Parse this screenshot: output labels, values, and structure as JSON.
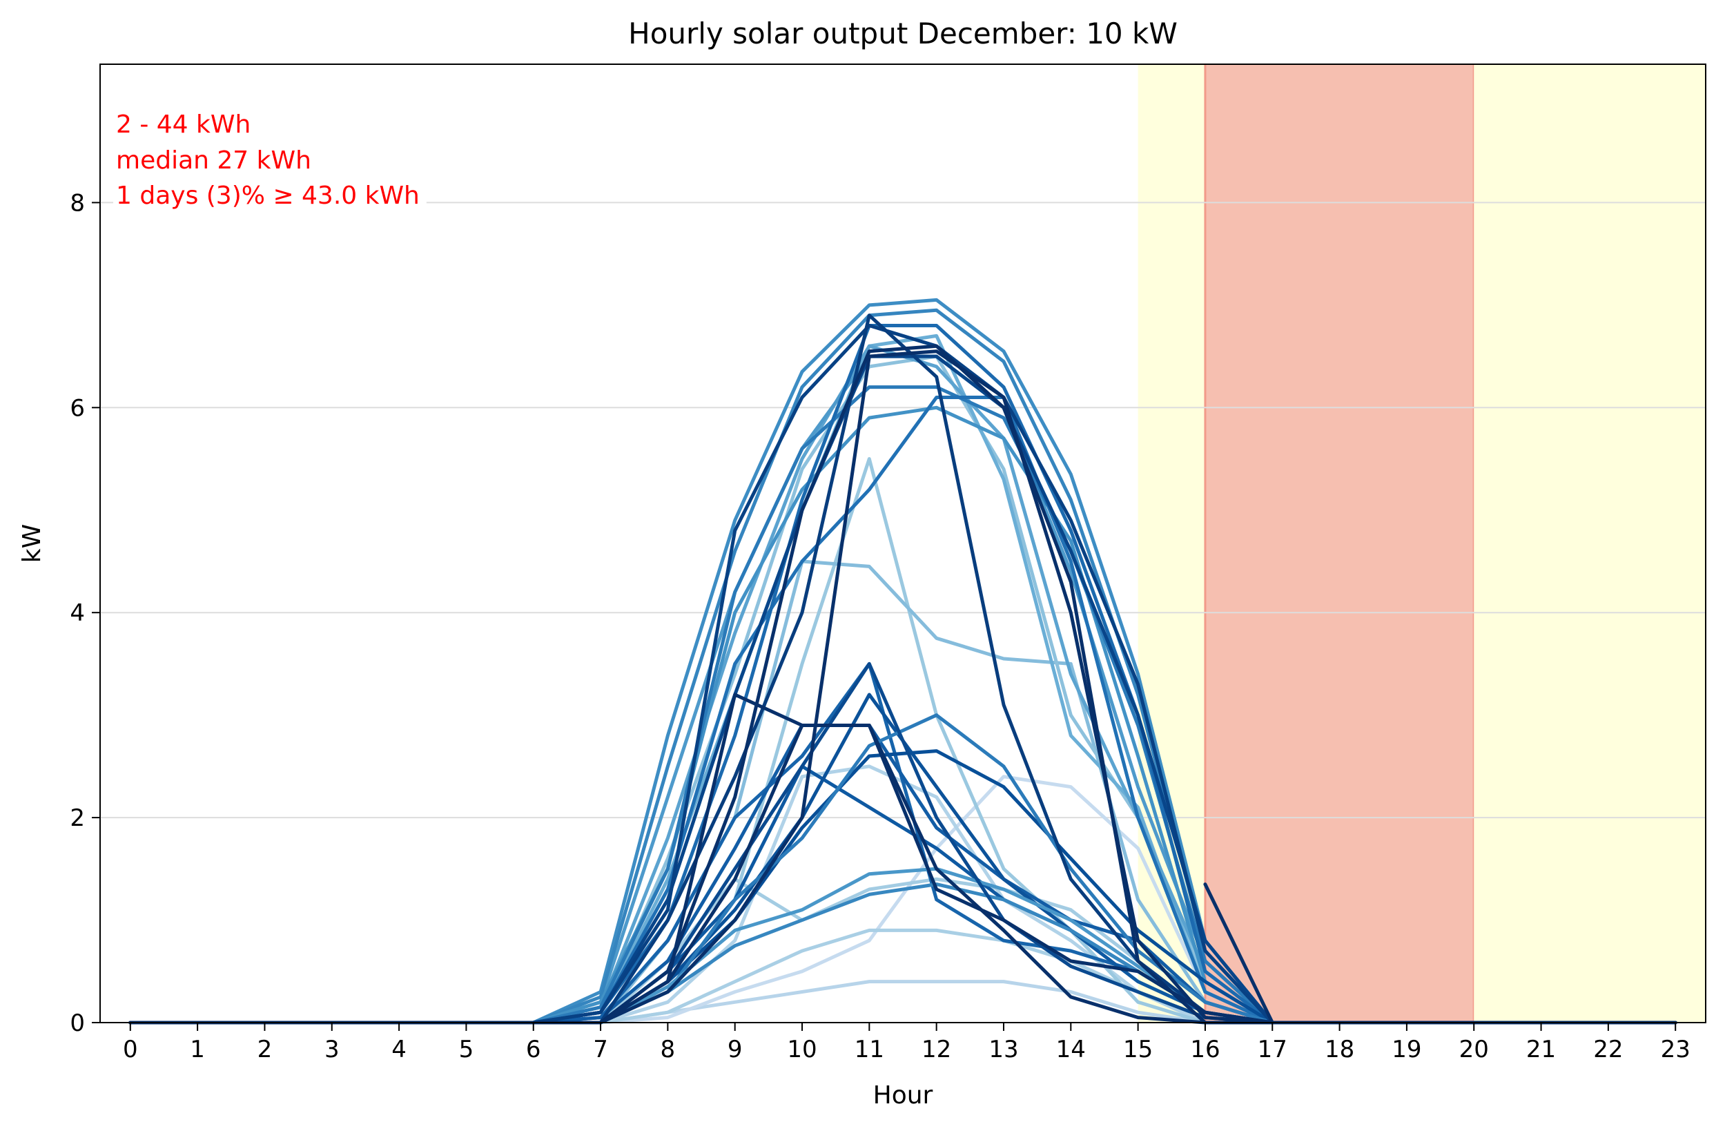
{
  "chart_data": {
    "type": "line",
    "title": "Hourly solar output December:  10 kW",
    "xlabel": "Hour",
    "ylabel": "kW",
    "xlim": [
      -0.45,
      23.45
    ],
    "ylim": [
      0,
      9.35
    ],
    "x_ticks": [
      "0",
      "1",
      "2",
      "3",
      "4",
      "5",
      "6",
      "7",
      "8",
      "9",
      "10",
      "11",
      "12",
      "13",
      "14",
      "15",
      "16",
      "17",
      "18",
      "19",
      "20",
      "21",
      "22",
      "23"
    ],
    "y_ticks": [
      "0",
      "2",
      "4",
      "6",
      "8"
    ],
    "grid": "horizontal",
    "annotations": [
      "2 - 44 kWh",
      "median  27 kWh",
      "1 days (3)% ≥ 43.0 kWh"
    ],
    "colors": {
      "annotation": "#ff0000",
      "shoulder_band": "#ffffdd",
      "peak_band": "#f6bfb0",
      "peak_band_edge": "#f29a8a",
      "grid": "#dddddd"
    },
    "bands": [
      {
        "from": 15,
        "to": 16,
        "kind": "shoulder"
      },
      {
        "from": 16,
        "to": 20,
        "kind": "peak"
      },
      {
        "from": 20,
        "to": 23.45,
        "kind": "shoulder"
      }
    ],
    "x": [
      0,
      1,
      2,
      3,
      4,
      5,
      6,
      7,
      8,
      9,
      10,
      11,
      12,
      13,
      14,
      15,
      16,
      17,
      18,
      19,
      20,
      21,
      22,
      23
    ],
    "series": [
      {
        "color": "#b7d4ea",
        "values": [
          0,
          0,
          0,
          0,
          0,
          0,
          0,
          0,
          0.1,
          0.2,
          0.3,
          0.4,
          0.4,
          0.4,
          0.3,
          0.1,
          0,
          0,
          0,
          0,
          0,
          0,
          0,
          0
        ]
      },
      {
        "color": "#c6dbef",
        "values": [
          0,
          0,
          0,
          0,
          0,
          0,
          0,
          0,
          0.05,
          0.3,
          0.5,
          0.8,
          1.7,
          2.4,
          2.3,
          1.7,
          0.3,
          0,
          0,
          0,
          0,
          0,
          0,
          0
        ]
      },
      {
        "color": "#a9cfe5",
        "values": [
          0,
          0,
          0,
          0,
          0,
          0,
          0,
          0,
          0.1,
          0.4,
          0.7,
          0.9,
          0.9,
          0.8,
          0.6,
          0.3,
          0,
          0,
          0,
          0,
          0,
          0,
          0,
          0
        ]
      },
      {
        "color": "#b0d2e8",
        "values": [
          0,
          0,
          0,
          0,
          0,
          0,
          0,
          0,
          0.2,
          0.8,
          2.4,
          2.5,
          2.2,
          1.2,
          0.8,
          0.3,
          0,
          0,
          0,
          0,
          0,
          0,
          0,
          0
        ]
      },
      {
        "color": "#9ac8e0",
        "values": [
          0,
          0,
          0,
          0,
          0,
          0,
          0,
          0,
          0.3,
          1.2,
          3.5,
          5.5,
          3.0,
          1.5,
          0.9,
          0.2,
          0,
          0,
          0,
          0,
          0,
          0,
          0,
          0
        ]
      },
      {
        "color": "#a3cce3",
        "values": [
          0,
          0,
          0,
          0,
          0,
          0,
          0,
          0,
          0.6,
          1.4,
          1.0,
          1.3,
          1.4,
          1.3,
          1.1,
          0.6,
          0.1,
          0,
          0,
          0,
          0,
          0,
          0,
          0
        ]
      },
      {
        "color": "#85bcdc",
        "values": [
          0,
          0,
          0,
          0,
          0,
          0,
          0,
          0,
          0.8,
          2.0,
          4.5,
          4.45,
          3.75,
          3.55,
          3.5,
          1.2,
          0.2,
          0,
          0,
          0,
          0,
          0,
          0,
          0
        ]
      },
      {
        "color": "#8dc1dd",
        "values": [
          0,
          0,
          0,
          0,
          0,
          0,
          0,
          0.1,
          1.6,
          3.4,
          5.4,
          6.4,
          6.5,
          5.4,
          3.0,
          2.0,
          0.4,
          0,
          0,
          0,
          0,
          0,
          0,
          0
        ]
      },
      {
        "color": "#6aaed6",
        "values": [
          0,
          0,
          0,
          0,
          0,
          0,
          0,
          0.1,
          1.4,
          3.2,
          5.0,
          6.6,
          6.7,
          5.3,
          2.8,
          2.1,
          0.3,
          0,
          0,
          0,
          0,
          0,
          0,
          0
        ]
      },
      {
        "color": "#5ba3d0",
        "values": [
          0,
          0,
          0,
          0,
          0,
          0,
          0,
          0.15,
          1.8,
          3.8,
          5.5,
          6.6,
          6.4,
          5.7,
          3.4,
          2.0,
          0.5,
          0,
          0,
          0,
          0,
          0,
          0,
          0
        ]
      },
      {
        "color": "#4e9acb",
        "values": [
          0,
          0,
          0,
          0,
          0,
          0,
          0,
          0.2,
          2.2,
          4.2,
          5.6,
          6.5,
          6.5,
          6.0,
          4.4,
          2.3,
          0.6,
          0,
          0,
          0,
          0,
          0,
          0,
          0
        ]
      },
      {
        "color": "#3d8dc4",
        "values": [
          0,
          0,
          0,
          0,
          0,
          0,
          0,
          0.3,
          2.8,
          4.9,
          6.35,
          7.0,
          7.05,
          6.55,
          5.35,
          3.4,
          0.8,
          0,
          0,
          0,
          0,
          0,
          0,
          0
        ]
      },
      {
        "color": "#3585bf",
        "values": [
          0,
          0,
          0,
          0,
          0,
          0,
          0,
          0.25,
          2.5,
          4.6,
          6.2,
          6.9,
          6.95,
          6.45,
          5.1,
          3.2,
          0.7,
          0,
          0,
          0,
          0,
          0,
          0,
          0
        ]
      },
      {
        "color": "#4292c6",
        "values": [
          0,
          0,
          0,
          0,
          0,
          0,
          0,
          0.2,
          1.5,
          4.0,
          5.2,
          5.9,
          6.0,
          5.7,
          4.7,
          2.6,
          0.4,
          0,
          0,
          0,
          0,
          0,
          0,
          0
        ]
      },
      {
        "color": "#2a7ab9",
        "values": [
          0,
          0,
          0,
          0,
          0,
          0,
          0,
          0.15,
          1.5,
          4.2,
          5.6,
          6.2,
          6.2,
          5.9,
          4.6,
          2.9,
          0.6,
          0,
          0,
          0,
          0,
          0,
          0,
          0
        ]
      },
      {
        "color": "#2171b5",
        "values": [
          0,
          0,
          0,
          0,
          0,
          0,
          0,
          0.1,
          1.3,
          3.5,
          4.5,
          5.2,
          6.1,
          6.1,
          4.5,
          2.0,
          0.3,
          0,
          0,
          0,
          0,
          0,
          0,
          0
        ]
      },
      {
        "color": "#1c6aaf",
        "values": [
          0,
          0,
          0,
          0,
          0,
          0,
          0,
          0.1,
          1.0,
          2.8,
          5.1,
          6.8,
          6.8,
          6.2,
          4.8,
          3.0,
          0.5,
          0,
          0,
          0,
          0,
          0,
          0,
          0
        ]
      },
      {
        "color": "#1764ab",
        "values": [
          0,
          0,
          0,
          0,
          0,
          0,
          0,
          0.05,
          0.8,
          2.0,
          2.6,
          3.5,
          1.2,
          0.8,
          0.7,
          0.5,
          0.1,
          0,
          0,
          0,
          0,
          0,
          0,
          0
        ]
      },
      {
        "color": "#125da6",
        "values": [
          0,
          0,
          0,
          0,
          0,
          0,
          0,
          0.05,
          0.6,
          1.7,
          2.9,
          2.9,
          1.9,
          1.4,
          1.0,
          0.8,
          0.2,
          0,
          0,
          0,
          0,
          0,
          0,
          0
        ]
      },
      {
        "color": "#0e59a2",
        "values": [
          0,
          0,
          0,
          0,
          0,
          0,
          0,
          0,
          0.5,
          1.2,
          2.5,
          2.1,
          1.7,
          1.2,
          0.9,
          0.4,
          0.1,
          0,
          0,
          0,
          0,
          0,
          0,
          0
        ]
      },
      {
        "color": "#0b529a",
        "values": [
          0,
          0,
          0,
          0,
          0,
          0,
          0,
          0,
          0.4,
          1.1,
          2.0,
          3.2,
          2.3,
          1.4,
          0.9,
          0.5,
          0.1,
          0,
          0,
          0,
          0,
          0,
          0,
          0
        ]
      },
      {
        "color": "#084f98",
        "values": [
          0,
          0,
          0,
          0,
          0,
          0,
          0,
          0,
          0.4,
          1.0,
          1.9,
          2.6,
          2.65,
          2.3,
          1.6,
          0.9,
          0.4,
          0,
          0,
          0,
          0,
          0,
          0,
          0
        ]
      },
      {
        "color": "#2b7bba",
        "values": [
          0,
          0,
          0,
          0,
          0,
          0,
          0,
          0,
          0.3,
          1.2,
          1.8,
          2.7,
          3.0,
          2.5,
          1.5,
          0.7,
          0.2,
          0,
          0,
          0,
          0,
          0,
          0,
          0
        ]
      },
      {
        "color": "#3787c0",
        "values": [
          0,
          0,
          0,
          0,
          0,
          0,
          0,
          0,
          0.3,
          0.75,
          1.0,
          1.25,
          1.35,
          1.2,
          0.9,
          0.5,
          0.1,
          0,
          0,
          0,
          0,
          0,
          0,
          0
        ]
      },
      {
        "color": "#4997c9",
        "values": [
          0,
          0,
          0,
          0,
          0,
          0,
          0,
          0,
          0.35,
          0.9,
          1.1,
          1.45,
          1.5,
          1.3,
          1.0,
          0.55,
          0.1,
          0,
          0,
          0,
          0,
          0,
          0,
          0
        ]
      },
      {
        "color": "#0a4a90",
        "values": [
          0,
          0,
          0,
          0,
          0,
          0,
          0,
          0,
          0.5,
          1.5,
          2.5,
          3.5,
          2.0,
          1.0,
          0.55,
          0.3,
          0.05,
          0,
          0,
          0,
          0,
          0,
          0,
          0
        ]
      },
      {
        "color": "#08458a",
        "values": [
          0,
          0,
          0,
          0,
          0,
          0,
          0,
          0.1,
          1.2,
          3.2,
          5.0,
          6.5,
          6.5,
          6.0,
          4.6,
          3.0,
          0.8,
          0,
          0,
          0,
          0,
          0,
          0,
          0
        ]
      },
      {
        "color": "#084184",
        "values": [
          0,
          0,
          0,
          0,
          0,
          0,
          0,
          0.1,
          1.1,
          4.8,
          6.1,
          6.8,
          6.6,
          6.1,
          4.9,
          3.3,
          0.7,
          0,
          0,
          0,
          0,
          0,
          0,
          0
        ]
      },
      {
        "color": "#083d7e",
        "values": [
          0,
          0,
          0,
          0,
          0,
          0,
          0,
          0,
          1.0,
          2.4,
          4.0,
          6.9,
          6.3,
          3.1,
          1.4,
          0.6,
          0.1,
          0,
          0,
          0,
          0,
          0,
          0,
          0
        ]
      },
      {
        "color": "#08306b",
        "values": [
          0,
          0,
          0,
          0,
          0,
          0,
          0,
          0,
          0.5,
          2.2,
          5.0,
          6.55,
          6.6,
          6.0,
          4.3,
          0.6,
          0,
          0,
          0,
          0,
          0,
          0,
          0,
          0
        ]
      },
      {
        "color": "#08306b",
        "values": [
          0,
          0,
          0,
          0,
          0,
          0,
          0,
          0,
          0.4,
          1.4,
          2.9,
          2.9,
          1.5,
          0.9,
          0.25,
          0.05,
          0,
          0,
          0,
          0,
          0,
          0,
          0,
          0
        ]
      },
      {
        "color": "#08306b",
        "values": [
          0,
          0,
          0,
          0,
          0,
          0,
          0,
          0,
          0.3,
          1.0,
          2.0,
          6.5,
          6.55,
          6.1,
          4.0,
          0.8,
          0.05,
          0,
          0,
          0,
          0,
          0,
          0,
          0
        ]
      },
      {
        "color": "#08306b",
        "values": [
          0,
          0,
          0,
          0,
          0,
          0,
          0,
          0,
          0.4,
          3.2,
          2.9,
          2.9,
          1.3,
          1.0,
          0.6,
          0.5,
          0.1,
          0,
          0,
          0,
          0,
          0,
          0,
          0
        ]
      },
      {
        "color": "#08306b",
        "x": [
          16,
          17
        ],
        "values": [
          1.35,
          0
        ]
      }
    ]
  }
}
